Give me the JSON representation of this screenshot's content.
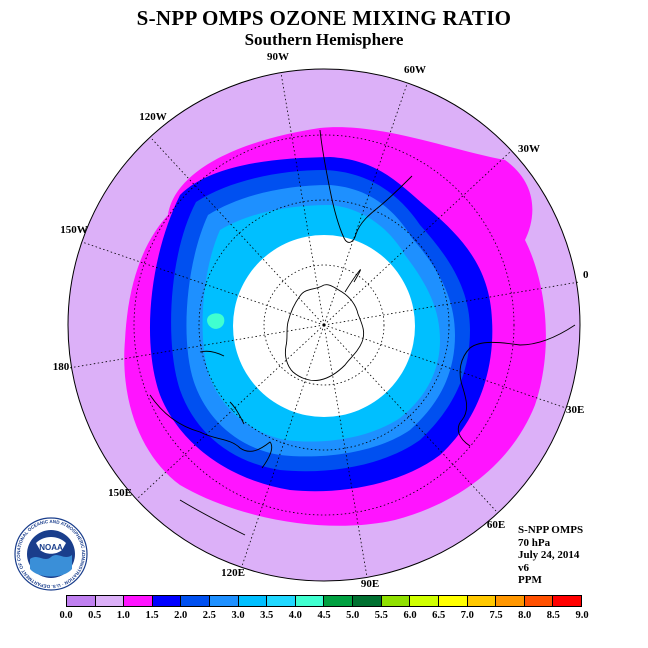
{
  "header": {
    "title": "S-NPP OMPS OZONE MIXING RATIO",
    "subtitle": "Southern Hemisphere"
  },
  "map": {
    "projection": "south polar stereographic",
    "longitude_labels": [
      "90W",
      "60W",
      "30W",
      "0",
      "30E",
      "60E",
      "90E",
      "120E",
      "150E",
      "180",
      "150W",
      "120W"
    ],
    "no_data_region": "polar night (white)"
  },
  "info": {
    "instrument": "S-NPP OMPS",
    "level": "70 hPa",
    "date": "July 24, 2014",
    "version": "v6",
    "units": "PPM"
  },
  "colorbar": {
    "ticks": [
      "0.0",
      "0.5",
      "1.0",
      "1.5",
      "2.0",
      "2.5",
      "3.0",
      "3.5",
      "4.0",
      "4.5",
      "5.0",
      "5.5",
      "6.0",
      "6.5",
      "7.0",
      "7.5",
      "8.0",
      "8.5",
      "9.0"
    ],
    "colors": [
      "#c080f0",
      "#dcb0f8",
      "#ff14ff",
      "#0000ff",
      "#0050f0",
      "#1e90ff",
      "#00bfff",
      "#20d8ff",
      "#40ffd0",
      "#00a040",
      "#007030",
      "#90e000",
      "#d0ff00",
      "#ffff00",
      "#ffc800",
      "#ff9600",
      "#ff5000",
      "#ff0000",
      "#8b5a3c"
    ]
  },
  "logo": {
    "text": "NOAA",
    "ring_text": "NATIONAL OCEANIC AND ATMOSPHERIC ADMINISTRATION · U.S. DEPARTMENT OF COMMERCE"
  }
}
